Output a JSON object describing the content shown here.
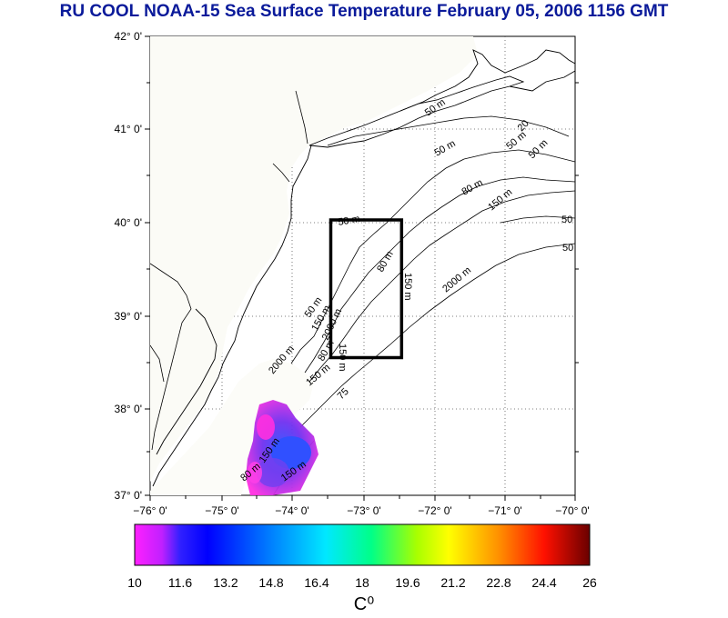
{
  "title": "RU COOL  NOAA-15 Sea Surface Temperature February 05, 2006 1156 GMT",
  "map": {
    "lon_range": [
      -76,
      -70
    ],
    "lat_range": [
      37,
      42
    ],
    "lon_ticks": [
      "−76° 0'",
      "−75° 0'",
      "−74° 0'",
      "−73° 0'",
      "−72° 0'",
      "−71° 0'",
      "−70° 0'"
    ],
    "lat_ticks": [
      "42° 0'",
      "41° 0'",
      "40° 0'",
      "39° 0'",
      "38° 0'",
      "37° 0'"
    ],
    "study_box": {
      "lon_min": -73.45,
      "lon_max": -72.45,
      "lat_min": 38.5,
      "lat_max": 40.0
    },
    "contour_labels": [
      "50 m",
      "50 m",
      "50 m",
      "80 m",
      "150 m",
      "80 m",
      "150 m",
      "2000 m",
      "50 m",
      "50 m",
      "150 m",
      "2000 m",
      "150 m",
      "80 m",
      "150 m",
      "75",
      "20",
      "50 m",
      "50 m",
      "2000 m",
      "80 m",
      "150 m",
      "150 m",
      "50 m"
    ]
  },
  "colorbar": {
    "min": 10,
    "max": 26,
    "ticks": [
      "10",
      "11.6",
      "13.2",
      "14.8",
      "16.4",
      "18",
      "19.6",
      "21.2",
      "22.8",
      "24.4",
      "26"
    ],
    "unit": "C⁰",
    "colors": [
      "#ff20ff",
      "#8020ff",
      "#0000ff",
      "#0080ff",
      "#00e0ff",
      "#00ff90",
      "#a0ff00",
      "#ffff00",
      "#ff9000",
      "#ff2000",
      "#c00000",
      "#700000"
    ]
  },
  "colors": {
    "title": "#0a1a9a",
    "land_outline": "#000000",
    "sst_pink": "#ff30e0",
    "sst_purple": "#7030f0",
    "sst_blue": "#3050ff"
  }
}
